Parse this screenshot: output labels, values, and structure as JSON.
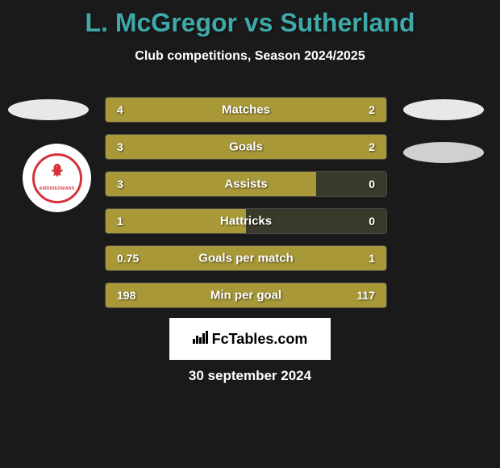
{
  "title": "L. McGregor vs Sutherland",
  "title_color": "#3fa8a8",
  "subtitle": "Club competitions, Season 2024/2025",
  "background_color": "#1a1a1a",
  "club_logo": {
    "text": "AIRDRIEONIANS",
    "border_color": "#d4333a",
    "text_color": "#d4333a"
  },
  "bar_fill_color": "#a89838",
  "bar_empty_color": "#3a3a2a",
  "stats": [
    {
      "label": "Matches",
      "left_val": "4",
      "right_val": "2",
      "left_pct": 66.6,
      "right_pct": 33.4
    },
    {
      "label": "Goals",
      "left_val": "3",
      "right_val": "2",
      "left_pct": 60,
      "right_pct": 40
    },
    {
      "label": "Assists",
      "left_val": "3",
      "right_val": "0",
      "left_pct": 75,
      "right_pct": 0
    },
    {
      "label": "Hattricks",
      "left_val": "1",
      "right_val": "0",
      "left_pct": 50,
      "right_pct": 0
    },
    {
      "label": "Goals per match",
      "left_val": "0.75",
      "right_val": "1",
      "left_pct": 4,
      "right_pct": 96
    },
    {
      "label": "Min per goal",
      "left_val": "198",
      "right_val": "117",
      "left_pct": 4,
      "right_pct": 96
    }
  ],
  "fctables_label": "FcTables.com",
  "date": "30 september 2024"
}
